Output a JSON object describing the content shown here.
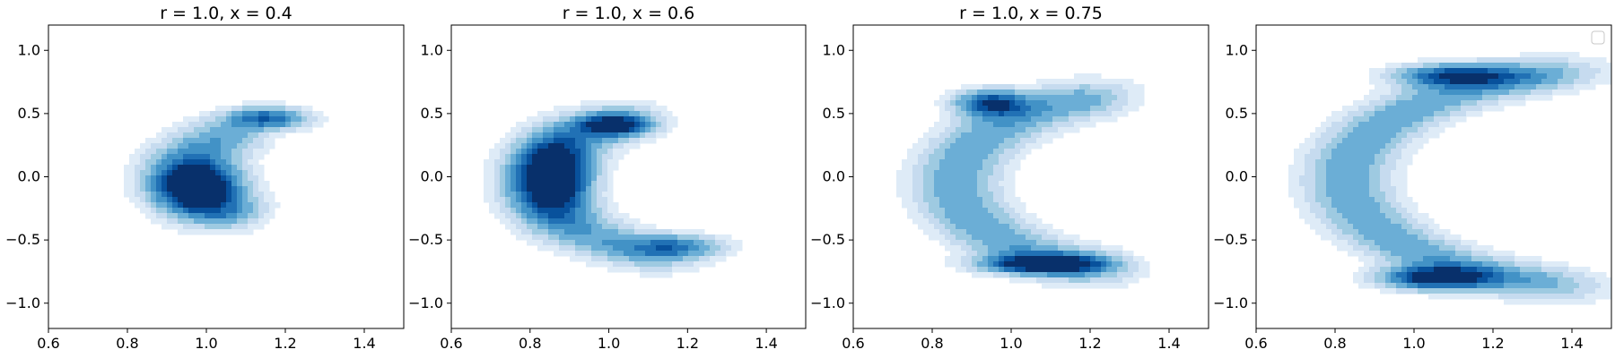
{
  "figure": {
    "description_free": true,
    "colormap": [
      "#f7fbff",
      "#deebf7",
      "#c6dbef",
      "#9ecae1",
      "#6baed6",
      "#4292c6",
      "#2171b5",
      "#08519c",
      "#08306b"
    ]
  },
  "chart_data": [
    {
      "type": "kde_contour",
      "title": "r = 1.0, x = 0.4",
      "xlim": [
        0.6,
        1.5
      ],
      "ylim": [
        -1.2,
        1.2
      ],
      "xticks": [
        0.6,
        0.8,
        1.0,
        1.2,
        1.4
      ],
      "xtick_labels": [
        "0.6",
        "0.8",
        "1.0",
        "1.2",
        "1.4"
      ],
      "yticks": [
        -1.0,
        -0.5,
        0.0,
        0.5,
        1.0
      ],
      "ytick_labels": [
        "−1.0",
        "−0.5",
        "0.0",
        "0.5",
        "1.0"
      ],
      "legend": false,
      "arc": {
        "center": [
          1.33,
          0.02
        ],
        "radius": 0.38,
        "theta_start_deg": 140,
        "theta_end_deg": 222,
        "y_scale": 1.18
      },
      "blobs": [
        {
          "x": 0.98,
          "y": -0.08,
          "weight": 1.0,
          "sx": 0.07,
          "sy": 0.14
        },
        {
          "x": 1.15,
          "y": 0.46,
          "weight": 0.7,
          "sx": 0.07,
          "sy": 0.06
        }
      ]
    },
    {
      "type": "kde_contour",
      "title": "r = 1.0, x = 0.6",
      "xlim": [
        0.6,
        1.5
      ],
      "ylim": [
        -1.2,
        1.2
      ],
      "xticks": [
        0.6,
        0.8,
        1.0,
        1.2,
        1.4
      ],
      "xtick_labels": [
        "0.6",
        "0.8",
        "1.0",
        "1.2",
        "1.4"
      ],
      "yticks": [
        -1.0,
        -0.5,
        0.0,
        0.5,
        1.0
      ],
      "ytick_labels": [
        "−1.0",
        "−0.5",
        "0.0",
        "0.5",
        "1.0"
      ],
      "legend": false,
      "arc": {
        "center": [
          1.35,
          -0.05
        ],
        "radius": 0.52,
        "theta_start_deg": 132,
        "theta_end_deg": 240,
        "y_scale": 1.2
      },
      "blobs": [
        {
          "x": 0.86,
          "y": 0.0,
          "weight": 1.0,
          "sx": 0.06,
          "sy": 0.2
        },
        {
          "x": 1.01,
          "y": 0.41,
          "weight": 0.75,
          "sx": 0.06,
          "sy": 0.06
        },
        {
          "x": 1.18,
          "y": -0.55,
          "weight": 0.45,
          "sx": 0.08,
          "sy": 0.06
        }
      ]
    },
    {
      "type": "kde_contour",
      "title": "r = 1.0, x = 0.75",
      "xlim": [
        0.6,
        1.5
      ],
      "ylim": [
        -1.2,
        1.2
      ],
      "xticks": [
        0.6,
        0.8,
        1.0,
        1.2,
        1.4
      ],
      "xtick_labels": [
        "0.6",
        "0.8",
        "1.0",
        "1.2",
        "1.4"
      ],
      "yticks": [
        -1.0,
        -0.5,
        0.0,
        0.5,
        1.0
      ],
      "ytick_labels": [
        "−1.0",
        "−0.5",
        "0.0",
        "0.5",
        "1.0"
      ],
      "legend": false,
      "arc": {
        "center": [
          1.42,
          -0.05
        ],
        "radius": 0.56,
        "theta_start_deg": 118,
        "theta_end_deg": 242,
        "y_scale": 1.3
      },
      "blobs": [
        {
          "x": 0.95,
          "y": 0.58,
          "weight": 0.8,
          "sx": 0.06,
          "sy": 0.07
        },
        {
          "x": 1.08,
          "y": -0.69,
          "weight": 1.0,
          "sx": 0.1,
          "sy": 0.05
        }
      ]
    },
    {
      "type": "kde_contour",
      "title": "",
      "xlim": [
        0.6,
        1.5
      ],
      "ylim": [
        -1.2,
        1.2
      ],
      "xticks": [
        0.6,
        0.8,
        1.0,
        1.2,
        1.4
      ],
      "xtick_labels": [
        "0.6",
        "0.8",
        "1.0",
        "1.2",
        "1.4"
      ],
      "yticks": [
        -1.0,
        -0.5,
        0.0,
        0.5,
        1.0
      ],
      "ytick_labels": [
        "−1.0",
        "−0.5",
        "0.0",
        "0.5",
        "1.0"
      ],
      "legend": true,
      "legend_loc": "upper right",
      "arc": {
        "center": [
          1.55,
          -0.02
        ],
        "radius": 0.72,
        "theta_start_deg": 112,
        "theta_end_deg": 248,
        "y_scale": 1.2
      },
      "blobs": [
        {
          "x": 1.11,
          "y": 0.8,
          "weight": 0.8,
          "sx": 0.1,
          "sy": 0.06
        },
        {
          "x": 1.06,
          "y": -0.8,
          "weight": 1.0,
          "sx": 0.09,
          "sy": 0.06
        }
      ]
    }
  ]
}
